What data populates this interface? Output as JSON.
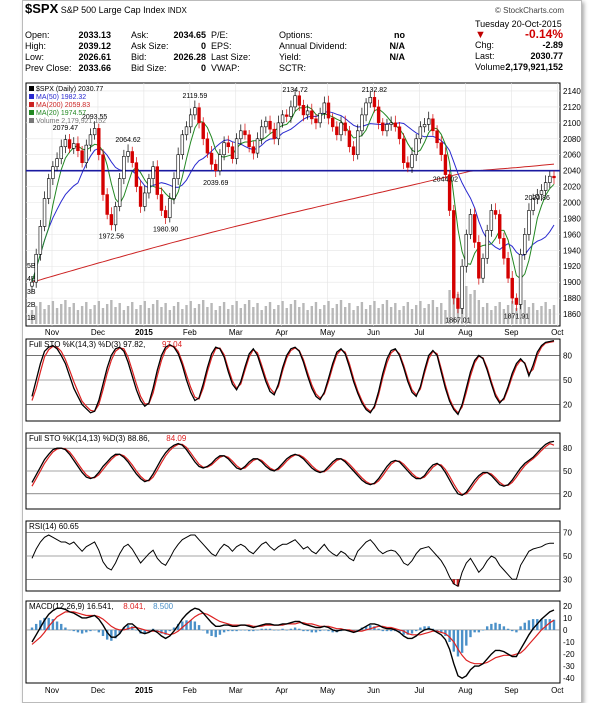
{
  "header": {
    "symbol": "$SPX",
    "name": "S&P 500 Large Cap Index",
    "exchange": "INDX",
    "watermark": "© StockCharts.com",
    "date": "Tuesday  20-Oct-2015",
    "change_pct": "-0.14%",
    "change_arrow": "down",
    "quote_left": [
      {
        "label": "Open:",
        "value": "2033.13"
      },
      {
        "label": "High:",
        "value": "2039.12"
      },
      {
        "label": "Low:",
        "value": "2026.61"
      },
      {
        "label": "Prev Close:",
        "value": "2033.66"
      }
    ],
    "quote_mid": [
      {
        "label": "Ask:",
        "value": "2034.65"
      },
      {
        "label": "Ask Size:",
        "value": "0"
      },
      {
        "label": "Bid:",
        "value": "2026.28"
      },
      {
        "label": "Bid Size:",
        "value": "0"
      }
    ],
    "quote_fund": [
      {
        "label": "P/E:",
        "value": ""
      },
      {
        "label": "EPS:",
        "value": ""
      },
      {
        "label": "Last Size:",
        "value": ""
      },
      {
        "label": "VWAP:",
        "value": ""
      }
    ],
    "quote_opt": [
      {
        "label": "Options:",
        "value": "no"
      },
      {
        "label": "Annual Dividend:",
        "value": "N/A"
      },
      {
        "label": "Yield:",
        "value": "N/A"
      },
      {
        "label": "SCTR:",
        "value": ""
      }
    ],
    "quote_right": [
      {
        "label": "Chg:",
        "value": "-2.89"
      },
      {
        "label": "Last:",
        "value": "2030.77"
      },
      {
        "label": "Volume:",
        "value": "2,179,921,152"
      }
    ]
  },
  "colors": {
    "up": "#000000",
    "down": "#d40000",
    "ma50": "#2a2ad0",
    "ma200": "#cc2222",
    "ma20": "#228822",
    "volume": "#b8b8b8",
    "hline": "#1a1aa0",
    "k": "#000000",
    "d": "#dd2222",
    "rsi": "#000000",
    "histogram": "#4a90c8"
  },
  "chart_data": [
    {
      "panel": "price",
      "type": "candlestick",
      "legend": [
        {
          "text": "$SPX (Daily) 2030.77",
          "color": "#000000"
        },
        {
          "text": "MA(50) 1982.32",
          "color": "#2a2ad0"
        },
        {
          "text": "MA(200) 2059.83",
          "color": "#cc2222"
        },
        {
          "text": "MA(20) 1974.57",
          "color": "#228822"
        },
        {
          "text": "Volume 2,179,921,152",
          "color": "#777777"
        }
      ],
      "ylim": [
        1845,
        2150
      ],
      "yticks": [
        1860,
        1880,
        1900,
        1920,
        1940,
        1960,
        1980,
        2000,
        2020,
        2040,
        2060,
        2080,
        2100,
        2120,
        2140
      ],
      "volume_ticks": [
        "1B",
        "2B",
        "3B",
        "4B",
        "5B"
      ],
      "horizontal_line": 2040,
      "x_labels": [
        "Nov",
        "Dec",
        "2015",
        "Feb",
        "Mar",
        "Apr",
        "May",
        "Jun",
        "Jul",
        "Aug",
        "Sep",
        "Oct"
      ],
      "annotations": [
        {
          "text": "2079.47",
          "month": "Nov",
          "value": 2079.47
        },
        {
          "text": "2093.55",
          "month": "Dec",
          "value": 2093.55
        },
        {
          "text": "2064.62",
          "month": "Jan",
          "value": 2064.62
        },
        {
          "text": "1972.56",
          "month": "Dec",
          "value": 1972.56
        },
        {
          "text": "1980.90",
          "month": "Feb",
          "value": 1980.9
        },
        {
          "text": "2119.59",
          "month": "Mar",
          "value": 2119.59
        },
        {
          "text": "2039.69",
          "month": "Mar",
          "value": 2039.69
        },
        {
          "text": "2134.72",
          "month": "May",
          "value": 2134.72
        },
        {
          "text": "2132.82",
          "month": "Jul",
          "value": 2132.82
        },
        {
          "text": "2044.02",
          "month": "Aug",
          "value": 2044.02
        },
        {
          "text": "2020.86",
          "month": "Sep",
          "value": 2020.86
        },
        {
          "text": "1867.01",
          "month": "Aug",
          "value": 1867.01
        },
        {
          "text": "1871.91",
          "month": "Sep",
          "value": 1871.91
        }
      ],
      "closes": [
        1900,
        1935,
        1970,
        2005,
        2030,
        2045,
        2055,
        2070,
        2079,
        2068,
        2074,
        2065,
        2050,
        2072,
        2085,
        2093,
        2060,
        2010,
        1985,
        1972,
        1995,
        2030,
        2058,
        2064,
        2050,
        2020,
        1995,
        2012,
        2030,
        2045,
        2010,
        1990,
        1981,
        2005,
        2030,
        2060,
        2085,
        2095,
        2110,
        2119,
        2100,
        2080,
        2062,
        2048,
        2040,
        2060,
        2075,
        2070,
        2055,
        2080,
        2090,
        2085,
        2070,
        2062,
        2080,
        2095,
        2102,
        2092,
        2080,
        2100,
        2110,
        2108,
        2120,
        2134,
        2122,
        2110,
        2115,
        2105,
        2100,
        2112,
        2125,
        2106,
        2095,
        2085,
        2100,
        2090,
        2070,
        2060,
        2090,
        2110,
        2125,
        2132,
        2120,
        2100,
        2090,
        2098,
        2100,
        2095,
        2080,
        2050,
        2044,
        2060,
        2080,
        2095,
        2098,
        2105,
        2090,
        2075,
        2060,
        2035,
        1990,
        1880,
        1867,
        1920,
        1960,
        1985,
        1950,
        1905,
        1930,
        1965,
        1990,
        1985,
        1955,
        1930,
        1905,
        1880,
        1872,
        1935,
        1960,
        1990,
        2005,
        2010,
        2015,
        2025,
        2033,
        2031
      ]
    },
    {
      "panel": "full_sto_14_3",
      "type": "line",
      "legend": [
        {
          "text": "Full STO %K(14,3) %D(3) 97.82,",
          "color": "#000000"
        },
        {
          "text": "97.04",
          "color": "#dd2222"
        }
      ],
      "ylim": [
        0,
        100
      ],
      "yticks": [
        20,
        50,
        80
      ],
      "threshold_lines": [
        20,
        50,
        80
      ],
      "k": [
        30,
        50,
        70,
        85,
        90,
        92,
        88,
        80,
        70,
        55,
        40,
        30,
        20,
        15,
        10,
        12,
        25,
        45,
        65,
        80,
        88,
        90,
        85,
        72,
        55,
        38,
        25,
        18,
        22,
        40,
        62,
        80,
        90,
        93,
        90,
        82,
        68,
        50,
        35,
        25,
        28,
        45,
        65,
        82,
        90,
        88,
        78,
        60,
        45,
        38,
        48,
        66,
        82,
        88,
        80,
        64,
        48,
        36,
        32,
        45,
        65,
        80,
        88,
        90,
        85,
        72,
        55,
        40,
        30,
        26,
        35,
        52,
        70,
        84,
        88,
        82,
        66,
        48,
        34,
        22,
        14,
        10,
        18,
        36,
        58,
        76,
        86,
        88,
        80,
        65,
        48,
        35,
        30,
        42,
        62,
        80,
        86,
        80,
        60,
        40,
        24,
        14,
        8,
        20,
        40,
        60,
        74,
        80,
        76,
        62,
        45,
        30,
        22,
        28,
        42,
        58,
        70,
        76,
        70,
        55,
        68,
        84,
        92,
        96,
        97,
        98
      ],
      "d": [
        25,
        40,
        60,
        78,
        87,
        91,
        90,
        85,
        75,
        62,
        48,
        36,
        24,
        18,
        13,
        12,
        20,
        38,
        58,
        74,
        85,
        89,
        88,
        78,
        62,
        45,
        30,
        21,
        21,
        34,
        55,
        74,
        87,
        92,
        91,
        85,
        72,
        56,
        41,
        29,
        27,
        40,
        60,
        77,
        88,
        89,
        81,
        64,
        49,
        40,
        45,
        62,
        78,
        87,
        83,
        68,
        52,
        40,
        34,
        42,
        61,
        77,
        86,
        89,
        86,
        75,
        59,
        44,
        33,
        28,
        33,
        48,
        66,
        81,
        87,
        84,
        70,
        52,
        37,
        25,
        16,
        12,
        16,
        32,
        53,
        71,
        83,
        87,
        82,
        68,
        52,
        38,
        32,
        39,
        58,
        76,
        85,
        82,
        64,
        44,
        27,
        16,
        10,
        17,
        35,
        55,
        71,
        79,
        77,
        65,
        48,
        33,
        24,
        26,
        39,
        54,
        67,
        74,
        71,
        58,
        63,
        80,
        90,
        95,
        96,
        97
      ]
    },
    {
      "panel": "full_sto_14_13",
      "type": "line",
      "legend": [
        {
          "text": "Full STO %K(14,13) %D(3) 88.86,",
          "color": "#000000"
        },
        {
          "text": "84.09",
          "color": "#dd2222"
        }
      ],
      "ylim": [
        0,
        100
      ],
      "yticks": [
        20,
        50,
        80
      ],
      "threshold_lines": [
        20,
        50,
        80
      ],
      "k": [
        35,
        45,
        55,
        65,
        72,
        78,
        80,
        80,
        78,
        72,
        64,
        56,
        48,
        42,
        40,
        42,
        48,
        56,
        62,
        68,
        72,
        72,
        68,
        62,
        54,
        46,
        40,
        36,
        38,
        46,
        56,
        66,
        74,
        80,
        84,
        86,
        84,
        78,
        70,
        62,
        56,
        54,
        56,
        60,
        66,
        70,
        70,
        66,
        60,
        54,
        52,
        56,
        62,
        66,
        66,
        62,
        56,
        52,
        50,
        54,
        60,
        66,
        70,
        72,
        70,
        66,
        60,
        54,
        50,
        48,
        50,
        56,
        62,
        66,
        66,
        62,
        56,
        50,
        44,
        38,
        34,
        32,
        34,
        40,
        48,
        56,
        62,
        64,
        62,
        56,
        50,
        44,
        40,
        40,
        44,
        52,
        58,
        60,
        56,
        48,
        38,
        28,
        20,
        18,
        22,
        30,
        38,
        44,
        48,
        48,
        44,
        38,
        32,
        30,
        32,
        38,
        46,
        54,
        60,
        64,
        68,
        74,
        80,
        85,
        88,
        89
      ],
      "d": [
        30,
        40,
        50,
        60,
        68,
        75,
        79,
        80,
        79,
        75,
        68,
        60,
        52,
        45,
        41,
        41,
        45,
        52,
        59,
        65,
        70,
        72,
        70,
        65,
        58,
        50,
        43,
        38,
        37,
        42,
        51,
        61,
        70,
        77,
        82,
        85,
        85,
        81,
        74,
        66,
        59,
        55,
        55,
        58,
        63,
        68,
        70,
        68,
        63,
        57,
        53,
        54,
        59,
        64,
        66,
        64,
        59,
        54,
        51,
        52,
        57,
        63,
        68,
        71,
        71,
        68,
        63,
        57,
        52,
        49,
        49,
        53,
        59,
        64,
        66,
        64,
        59,
        53,
        47,
        41,
        36,
        33,
        33,
        37,
        44,
        52,
        59,
        63,
        63,
        59,
        53,
        47,
        42,
        40,
        42,
        48,
        55,
        59,
        58,
        52,
        43,
        33,
        24,
        19,
        20,
        26,
        34,
        41,
        46,
        48,
        46,
        41,
        35,
        31,
        31,
        35,
        42,
        50,
        57,
        62,
        66,
        71,
        77,
        82,
        86,
        84
      ]
    },
    {
      "panel": "rsi",
      "type": "line",
      "legend": [
        {
          "text": "RSI(14) 60.65",
          "color": "#000000"
        }
      ],
      "ylim": [
        20,
        80
      ],
      "yticks": [
        30,
        50,
        70
      ],
      "threshold_lines": [
        30,
        50,
        70
      ],
      "values": [
        48,
        56,
        62,
        66,
        68,
        66,
        64,
        62,
        62,
        60,
        62,
        58,
        54,
        58,
        60,
        62,
        55,
        45,
        40,
        38,
        44,
        52,
        58,
        60,
        56,
        50,
        44,
        48,
        52,
        55,
        48,
        44,
        42,
        48,
        55,
        60,
        64,
        66,
        68,
        68,
        64,
        60,
        56,
        52,
        50,
        56,
        60,
        58,
        54,
        58,
        60,
        58,
        54,
        52,
        56,
        60,
        62,
        58,
        55,
        58,
        60,
        60,
        62,
        64,
        60,
        56,
        58,
        54,
        52,
        56,
        60,
        55,
        52,
        50,
        54,
        52,
        48,
        46,
        54,
        58,
        62,
        64,
        60,
        55,
        52,
        54,
        55,
        54,
        50,
        44,
        42,
        46,
        52,
        56,
        57,
        58,
        54,
        50,
        46,
        40,
        32,
        26,
        24,
        36,
        44,
        48,
        42,
        36,
        40,
        46,
        50,
        48,
        42,
        38,
        34,
        30,
        30,
        42,
        48,
        54,
        56,
        57,
        58,
        60,
        61,
        61
      ]
    },
    {
      "panel": "macd",
      "type": "line",
      "legend": [
        {
          "text": "MACD(12,26,9) 16.541,",
          "color": "#000000"
        },
        {
          "text": "8.041,",
          "color": "#dd2222"
        },
        {
          "text": "8.500",
          "color": "#4a90c8"
        }
      ],
      "ylim": [
        -44,
        24
      ],
      "yticks": [
        -40,
        -30,
        -20,
        -10,
        0,
        10,
        20
      ],
      "macd": [
        -10,
        -4,
        2,
        8,
        13,
        16,
        18,
        18,
        17,
        15,
        14,
        12,
        10,
        10,
        11,
        12,
        9,
        4,
        -2,
        -6,
        -6,
        -3,
        2,
        5,
        5,
        2,
        -2,
        -3,
        -2,
        0,
        -2,
        -5,
        -7,
        -5,
        -1,
        4,
        9,
        13,
        16,
        18,
        17,
        14,
        10,
        6,
        3,
        3,
        4,
        4,
        3,
        3,
        4,
        4,
        3,
        2,
        3,
        4,
        5,
        5,
        4,
        4,
        5,
        5,
        6,
        7,
        7,
        5,
        4,
        3,
        2,
        2,
        3,
        2,
        0,
        -1,
        0,
        0,
        -1,
        -2,
        -1,
        1,
        3,
        5,
        5,
        4,
        2,
        1,
        1,
        0,
        -2,
        -5,
        -7,
        -7,
        -5,
        -2,
        0,
        1,
        0,
        -2,
        -4,
        -8,
        -16,
        -28,
        -38,
        -40,
        -38,
        -33,
        -30,
        -30,
        -28,
        -24,
        -20,
        -17,
        -17,
        -18,
        -20,
        -22,
        -22,
        -16,
        -10,
        -4,
        1,
        5,
        9,
        12,
        15,
        16.5
      ],
      "signal": [
        -12,
        -9,
        -6,
        -2,
        3,
        7,
        11,
        13,
        15,
        15,
        15,
        14,
        13,
        12,
        12,
        12,
        11,
        9,
        6,
        3,
        1,
        0,
        0,
        1,
        2,
        2,
        1,
        0,
        -1,
        -1,
        -1,
        -2,
        -3,
        -4,
        -3,
        -1,
        2,
        5,
        8,
        11,
        13,
        14,
        13,
        11,
        9,
        7,
        6,
        5,
        4,
        4,
        4,
        4,
        4,
        3,
        3,
        3,
        4,
        4,
        4,
        4,
        4,
        5,
        5,
        5,
        6,
        6,
        5,
        5,
        4,
        3,
        3,
        3,
        2,
        1,
        1,
        0,
        0,
        -1,
        -1,
        -1,
        0,
        1,
        2,
        3,
        3,
        2,
        2,
        1,
        0,
        -1,
        -3,
        -4,
        -4,
        -4,
        -3,
        -2,
        -1,
        -1,
        -2,
        -3,
        -6,
        -10,
        -16,
        -21,
        -25,
        -27,
        -28,
        -28,
        -28,
        -27,
        -25,
        -23,
        -22,
        -21,
        -21,
        -21,
        -20,
        -19,
        -16,
        -12,
        -8,
        -4,
        0,
        3,
        6,
        8.041
      ]
    }
  ]
}
